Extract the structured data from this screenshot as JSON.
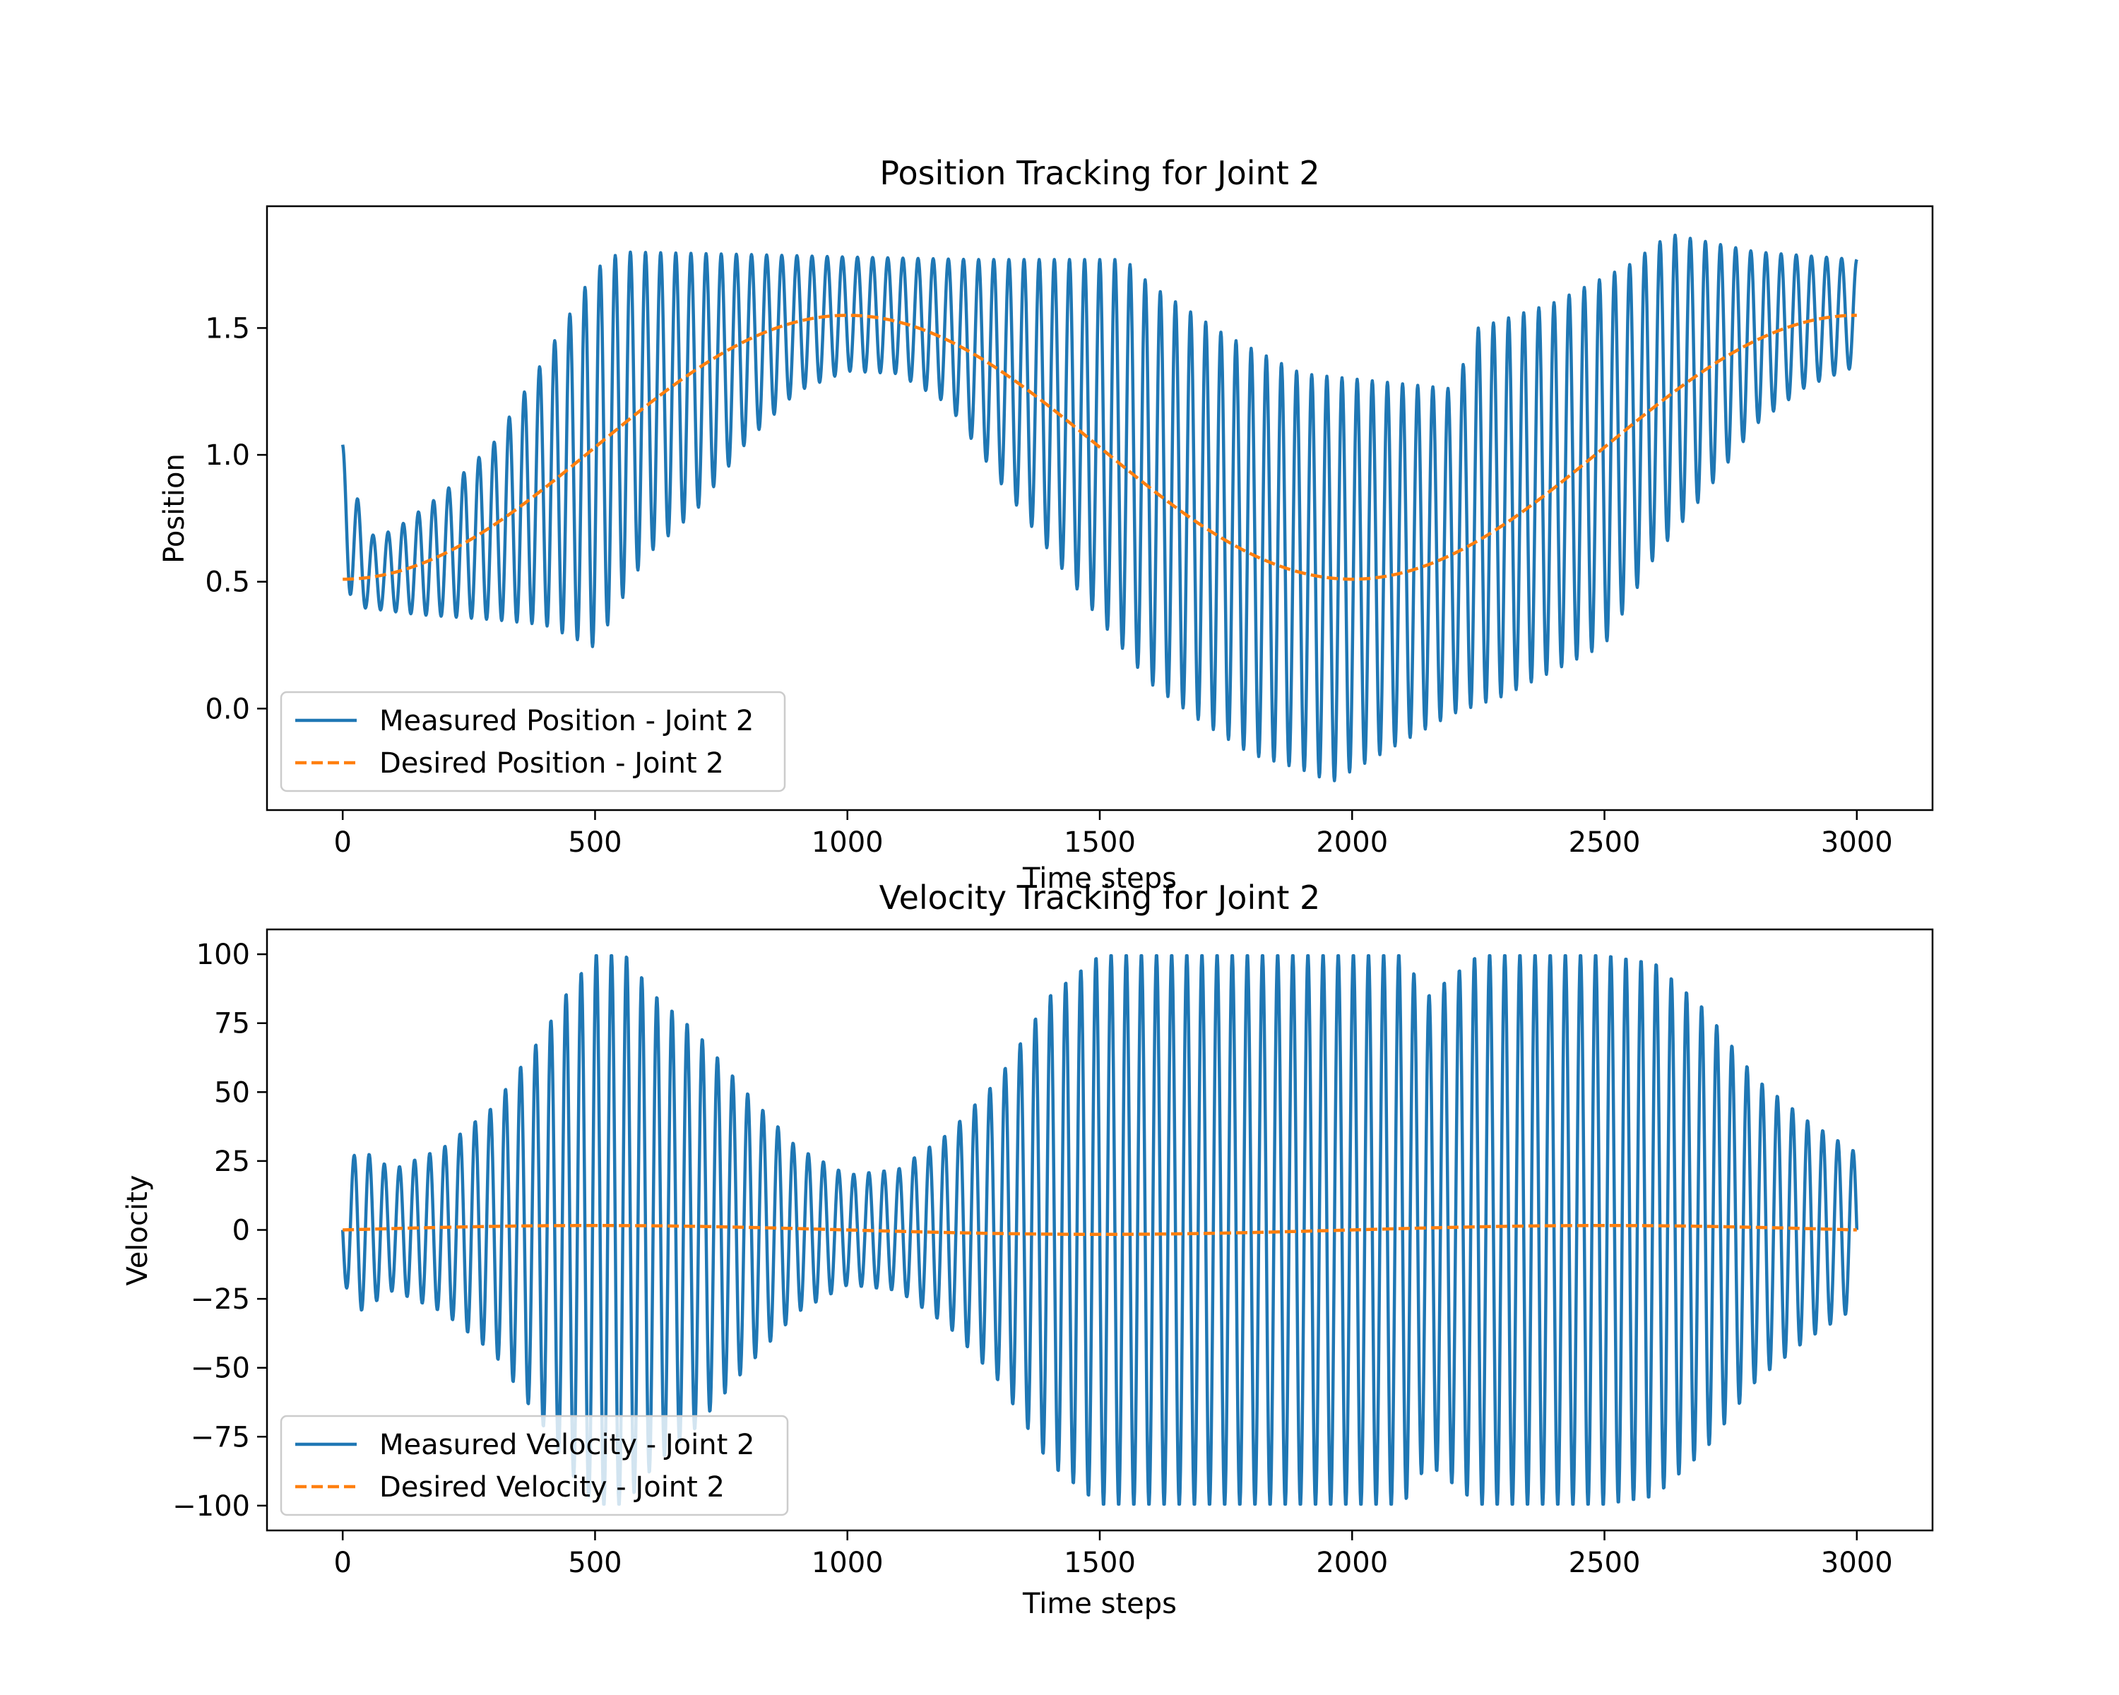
{
  "chart_data": [
    {
      "type": "line",
      "title": "Position Tracking for Joint 2",
      "xlabel": "Time steps",
      "ylabel": "Position",
      "xlim": [
        -150,
        3150
      ],
      "ylim": [
        -0.4,
        1.98
      ],
      "xticks": [
        0,
        500,
        1000,
        1500,
        2000,
        2500,
        3000
      ],
      "yticks": [
        0.0,
        0.5,
        1.0,
        1.5
      ],
      "xticklabels": [
        "0",
        "500",
        "1000",
        "1500",
        "2000",
        "2500",
        "3000"
      ],
      "yticklabels": [
        "0.0",
        "0.5",
        "1.0",
        "1.5"
      ],
      "grid": false,
      "legend_position": "lower-left",
      "series": [
        {
          "name": "Measured Position - Joint 2",
          "color": "#1f77b4",
          "style": "solid",
          "note_period": 30,
          "upper_env": [
            [
              0,
              1.04
            ],
            [
              50,
              0.68
            ],
            [
              100,
              0.7
            ],
            [
              200,
              0.85
            ],
            [
              300,
              1.05
            ],
            [
              400,
              1.38
            ],
            [
              500,
              1.73
            ],
            [
              550,
              1.8
            ],
            [
              800,
              1.79
            ],
            [
              1000,
              1.78
            ],
            [
              1250,
              1.77
            ],
            [
              1550,
              1.77
            ],
            [
              1600,
              1.67
            ],
            [
              1750,
              1.47
            ],
            [
              1900,
              1.32
            ],
            [
              2000,
              1.3
            ],
            [
              2200,
              1.26
            ],
            [
              2250,
              1.5
            ],
            [
              2400,
              1.6
            ],
            [
              2550,
              1.75
            ],
            [
              2630,
              1.87
            ],
            [
              2800,
              1.8
            ],
            [
              3000,
              1.77
            ]
          ],
          "lower_env": [
            [
              0,
              0.5
            ],
            [
              30,
              0.4
            ],
            [
              150,
              0.37
            ],
            [
              300,
              0.35
            ],
            [
              400,
              0.33
            ],
            [
              500,
              0.24
            ],
            [
              600,
              0.6
            ],
            [
              700,
              0.78
            ],
            [
              800,
              1.05
            ],
            [
              900,
              1.25
            ],
            [
              1000,
              1.33
            ],
            [
              1100,
              1.32
            ],
            [
              1200,
              1.2
            ],
            [
              1300,
              0.9
            ],
            [
              1400,
              0.62
            ],
            [
              1500,
              0.35
            ],
            [
              1600,
              0.1
            ],
            [
              1700,
              -0.05
            ],
            [
              1800,
              -0.18
            ],
            [
              1900,
              -0.24
            ],
            [
              1960,
              -0.29
            ],
            [
              2100,
              -0.13
            ],
            [
              2200,
              -0.02
            ],
            [
              2300,
              0.05
            ],
            [
              2400,
              0.15
            ],
            [
              2500,
              0.25
            ],
            [
              2600,
              0.6
            ],
            [
              2700,
              0.85
            ],
            [
              2800,
              1.12
            ],
            [
              2900,
              1.27
            ],
            [
              3000,
              1.35
            ]
          ]
        },
        {
          "name": "Desired Position - Joint 2",
          "color": "#ff7f0e",
          "style": "dashed",
          "formula": "1.03 - 0.52*cos(2*pi*t/2000)"
        }
      ]
    },
    {
      "type": "line",
      "title": "Velocity Tracking for Joint 2",
      "xlabel": "Time steps",
      "ylabel": "Velocity",
      "xlim": [
        -150,
        3150
      ],
      "ylim": [
        -109,
        109
      ],
      "xticks": [
        0,
        500,
        1000,
        1500,
        2000,
        2500,
        3000
      ],
      "yticks": [
        -100,
        -75,
        -50,
        -25,
        0,
        25,
        50,
        75,
        100
      ],
      "xticklabels": [
        "0",
        "500",
        "1000",
        "1500",
        "2000",
        "2500",
        "3000"
      ],
      "yticklabels": [
        "−100",
        "−75",
        "−50",
        "−25",
        "0",
        "25",
        "50",
        "75",
        "100"
      ],
      "grid": false,
      "legend_position": "lower-left",
      "series": [
        {
          "name": "Measured Velocity - Joint 2",
          "color": "#1f77b4",
          "style": "solid",
          "amp_env": [
            [
              0,
              18
            ],
            [
              30,
              30
            ],
            [
              100,
              22
            ],
            [
              200,
              30
            ],
            [
              300,
              45
            ],
            [
              400,
              72
            ],
            [
              450,
              88
            ],
            [
              500,
              100
            ],
            [
              560,
              100
            ],
            [
              620,
              85
            ],
            [
              700,
              72
            ],
            [
              800,
              50
            ],
            [
              900,
              30
            ],
            [
              1000,
              20
            ],
            [
              1100,
              22
            ],
            [
              1200,
              35
            ],
            [
              1300,
              55
            ],
            [
              1400,
              85
            ],
            [
              1500,
              100
            ],
            [
              2100,
              100
            ],
            [
              2150,
              85
            ],
            [
              2250,
              100
            ],
            [
              2500,
              100
            ],
            [
              2600,
              97
            ],
            [
              2700,
              80
            ],
            [
              2800,
              55
            ],
            [
              2900,
              40
            ],
            [
              3000,
              28
            ]
          ]
        },
        {
          "name": "Desired Velocity - Joint 2",
          "color": "#ff7f0e",
          "style": "dashed",
          "formula": "1.6*sin(2*pi*t/2000)"
        }
      ]
    }
  ]
}
